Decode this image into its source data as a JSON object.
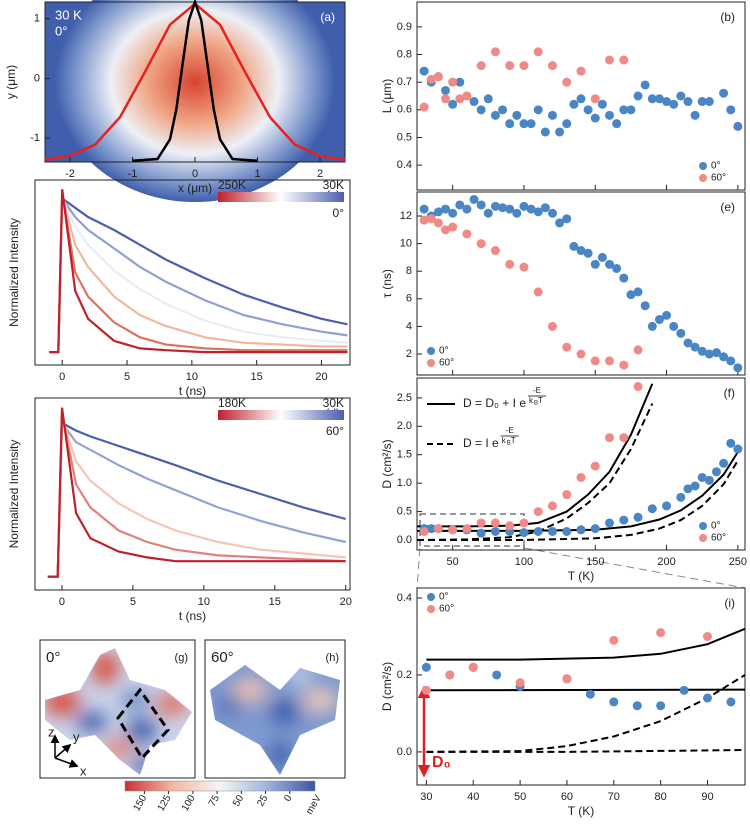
{
  "chart_data": [
    {
      "type": "profile",
      "label": "(a)",
      "text_color": "#ffffff",
      "annotations": [
        "30 K",
        "0°"
      ],
      "xlabel": "x (μm)",
      "ylabel": "y (μm)",
      "xlim": [
        -2.4,
        2.4
      ],
      "ylim": [
        -1.4,
        1.28
      ],
      "xticks": [
        -2,
        -1,
        0,
        1,
        2
      ],
      "yticks": [
        -1,
        0,
        1
      ],
      "series": [
        {
          "color": "#e8201e",
          "x": [
            -2.4,
            -2,
            -1.6,
            -1.2,
            -0.8,
            -0.4,
            0,
            0.4,
            0.8,
            1.2,
            1.6,
            2,
            2.4
          ],
          "values": [
            -1.36,
            -1.3,
            -1.11,
            -0.65,
            0.11,
            0.9,
            1.25,
            0.9,
            0.11,
            -0.65,
            -1.11,
            -1.3,
            -1.36
          ]
        },
        {
          "color": "#000000",
          "x": [
            -1,
            -0.6,
            -0.4,
            -0.3,
            -0.2,
            -0.1,
            0,
            0.1,
            0.2,
            0.3,
            0.4,
            0.6,
            1
          ],
          "values": [
            -1.38,
            -1.35,
            -1.02,
            -0.52,
            0.23,
            0.97,
            1.28,
            0.97,
            0.23,
            -0.52,
            -1.02,
            -1.35,
            -1.38
          ]
        }
      ]
    },
    {
      "type": "scatter",
      "label": "(b)",
      "ylabel": "L (μm)",
      "xlim": [
        25,
        255
      ],
      "ylim": [
        0.31,
        0.99
      ],
      "xticks": [
        50,
        100,
        150,
        200,
        250
      ],
      "xtick_labels": false,
      "yticks": [
        0.4,
        0.5,
        0.6,
        0.7,
        0.8,
        0.9
      ],
      "legend": "lower right",
      "series": [
        {
          "name": "0°",
          "color": "#4a86c4",
          "x": [
            30,
            35,
            40,
            45,
            50,
            55,
            60,
            65,
            70,
            75,
            80,
            85,
            90,
            95,
            100,
            105,
            110,
            115,
            120,
            125,
            130,
            135,
            140,
            145,
            150,
            155,
            160,
            165,
            170,
            175,
            180,
            185,
            190,
            195,
            200,
            205,
            210,
            215,
            220,
            225,
            230,
            240,
            245,
            250
          ],
          "values": [
            0.74,
            0.7,
            0.72,
            0.67,
            0.62,
            0.7,
            0.65,
            0.63,
            0.6,
            0.64,
            0.58,
            0.6,
            0.55,
            0.58,
            0.55,
            0.55,
            0.6,
            0.52,
            0.58,
            0.52,
            0.55,
            0.62,
            0.64,
            0.6,
            0.57,
            0.62,
            0.58,
            0.55,
            0.6,
            0.6,
            0.65,
            0.69,
            0.64,
            0.64,
            0.63,
            0.62,
            0.65,
            0.63,
            0.58,
            0.63,
            0.63,
            0.66,
            0.6,
            0.54
          ]
        },
        {
          "name": "60°",
          "color": "#ef8a87",
          "x": [
            30,
            35,
            40,
            45,
            50,
            55,
            60,
            70,
            80,
            90,
            100,
            110,
            120,
            130,
            140,
            150,
            160,
            170
          ],
          "values": [
            0.61,
            0.71,
            0.72,
            0.64,
            0.7,
            0.64,
            0.65,
            0.76,
            0.81,
            0.76,
            0.76,
            0.81,
            0.76,
            0.7,
            0.74,
            0.64,
            0.78,
            0.78
          ]
        }
      ]
    },
    {
      "type": "decay",
      "label": "(c)",
      "ylabel": "Normalized Intensity",
      "xlabel": "t (ns)",
      "xlim": [
        -2.1,
        22.2
      ],
      "ylim": [
        0.05,
        1.05
      ],
      "xticks": [
        0,
        5,
        10,
        15,
        20
      ],
      "colorbar": {
        "labels": [
          "250K",
          "30K"
        ],
        "colors": [
          "#c0202a",
          "#ffffff",
          "#4a5fae"
        ]
      },
      "annotations": [
        "0°"
      ],
      "x": [
        -1,
        -0.3,
        0,
        1,
        2,
        4,
        6,
        8,
        11,
        14,
        17,
        20,
        22
      ],
      "series": [
        {
          "color": "#4a5fae",
          "values": [
            0.12,
            0.12,
            0.95,
            0.9,
            0.85,
            0.78,
            0.7,
            0.62,
            0.52,
            0.43,
            0.36,
            0.3,
            0.27
          ]
        },
        {
          "color": "#8da0d0",
          "values": [
            0.12,
            0.12,
            0.95,
            0.85,
            0.78,
            0.68,
            0.58,
            0.5,
            0.4,
            0.32,
            0.27,
            0.23,
            0.21
          ]
        },
        {
          "color": "#e8ecf4",
          "values": [
            0.12,
            0.12,
            0.95,
            0.8,
            0.7,
            0.56,
            0.46,
            0.38,
            0.29,
            0.23,
            0.2,
            0.18,
            0.17
          ]
        },
        {
          "color": "#f0b8a0",
          "values": [
            0.12,
            0.12,
            0.96,
            0.7,
            0.58,
            0.42,
            0.32,
            0.26,
            0.2,
            0.17,
            0.16,
            0.15,
            0.15
          ]
        },
        {
          "color": "#e07060",
          "values": [
            0.12,
            0.12,
            0.98,
            0.55,
            0.42,
            0.28,
            0.2,
            0.16,
            0.14,
            0.13,
            0.13,
            0.13,
            0.13
          ]
        },
        {
          "color": "#c0202a",
          "values": [
            0.12,
            0.12,
            1.0,
            0.45,
            0.3,
            0.18,
            0.14,
            0.13,
            0.12,
            0.12,
            0.12,
            0.12,
            0.12
          ]
        }
      ]
    },
    {
      "type": "decay",
      "label": "(d)",
      "ylabel": "Normalized Intensity",
      "xlabel": "t (ns)",
      "xlim": [
        -1.9,
        20.3
      ],
      "ylim": [
        0.05,
        1.05
      ],
      "xticks": [
        0,
        5,
        10,
        15,
        20
      ],
      "colorbar": {
        "labels": [
          "180K",
          "30K"
        ],
        "colors": [
          "#c0202a",
          "#ffffff",
          "#4a5fae"
        ]
      },
      "annotations": [
        "60°"
      ],
      "x": [
        -1,
        -0.3,
        0,
        1,
        2,
        4,
        6,
        8,
        11,
        14,
        17,
        20
      ],
      "series": [
        {
          "color": "#4a5fae",
          "values": [
            0.12,
            0.12,
            0.92,
            0.88,
            0.85,
            0.8,
            0.75,
            0.7,
            0.62,
            0.55,
            0.48,
            0.42
          ]
        },
        {
          "color": "#8fa3d4",
          "values": [
            0.12,
            0.12,
            0.92,
            0.82,
            0.78,
            0.7,
            0.63,
            0.57,
            0.48,
            0.41,
            0.35,
            0.3
          ]
        },
        {
          "color": "#f3c6b4",
          "values": [
            0.12,
            0.12,
            0.95,
            0.72,
            0.62,
            0.5,
            0.42,
            0.36,
            0.3,
            0.26,
            0.24,
            0.22
          ]
        },
        {
          "color": "#e0807a",
          "values": [
            0.12,
            0.12,
            0.97,
            0.6,
            0.48,
            0.36,
            0.3,
            0.26,
            0.23,
            0.22,
            0.21,
            0.2
          ]
        },
        {
          "color": "#c0202a",
          "values": [
            0.12,
            0.12,
            1.0,
            0.45,
            0.32,
            0.25,
            0.22,
            0.2,
            0.2,
            0.2,
            0.2,
            0.2
          ]
        }
      ]
    },
    {
      "type": "scatter",
      "label": "(e)",
      "ylabel": "τ (ns)",
      "xlim": [
        25,
        255
      ],
      "ylim": [
        0.48,
        13.74
      ],
      "xticks": [
        50,
        100,
        150,
        200,
        250
      ],
      "xtick_labels": false,
      "yticks": [
        2,
        4,
        6,
        8,
        10,
        12
      ],
      "legend": "lower left",
      "series": [
        {
          "name": "0°",
          "color": "#4a86c4",
          "x": [
            30,
            35,
            40,
            45,
            50,
            55,
            60,
            65,
            70,
            75,
            80,
            85,
            90,
            95,
            100,
            105,
            110,
            115,
            120,
            125,
            130,
            135,
            140,
            145,
            150,
            155,
            160,
            165,
            170,
            175,
            180,
            185,
            190,
            195,
            200,
            205,
            210,
            215,
            220,
            225,
            230,
            235,
            240,
            245,
            250
          ],
          "values": [
            12.5,
            12,
            12.3,
            12.5,
            12.2,
            12.8,
            12.5,
            13.2,
            12.8,
            12.2,
            12.7,
            12.6,
            12.5,
            12.2,
            12.7,
            12.5,
            12.3,
            12.6,
            12.2,
            11.5,
            11.8,
            9.8,
            9.5,
            9.3,
            8.5,
            9,
            8.5,
            8.2,
            7.5,
            6.3,
            6.5,
            5.5,
            4,
            4.5,
            4.8,
            4,
            3.5,
            2.8,
            2.5,
            2.2,
            2,
            2.1,
            1.8,
            1.5,
            1
          ]
        },
        {
          "name": "60°",
          "color": "#ef8a87",
          "x": [
            30,
            35,
            40,
            45,
            50,
            60,
            70,
            80,
            90,
            100,
            110,
            120,
            130,
            140,
            150,
            160,
            170,
            180
          ],
          "values": [
            11.7,
            11.8,
            11.5,
            11,
            11.2,
            10.7,
            10,
            9.5,
            8.5,
            8.3,
            6.5,
            4,
            2.5,
            2,
            1.5,
            1.5,
            1.2,
            2.3
          ]
        }
      ]
    },
    {
      "type": "scatter",
      "label": "(f)",
      "ylabel": "D (cm²/s)",
      "xlabel": "T (K)",
      "xlim": [
        25,
        255
      ],
      "ylim": [
        -0.176,
        2.85
      ],
      "xticks": [
        50,
        100,
        150,
        200,
        250
      ],
      "yticks": [
        {
          "value": 0,
          "label": "0.0"
        },
        0.5,
        {
          "value": 1,
          "label": "1.0"
        },
        1.5,
        {
          "value": 2,
          "label": "2.0"
        },
        2.5
      ],
      "legend": "lower right",
      "formulas": [
        {
          "style": "solid",
          "lhs": "D = D₀ + I e",
          "exp": [
            "-E",
            "k",
            "B",
            "T"
          ]
        },
        {
          "style": "dashed",
          "lhs": "D = I e",
          "exp": [
            "-E",
            "k",
            "B",
            "T"
          ]
        }
      ],
      "series": [
        {
          "name": "0°",
          "color": "#4a86c4",
          "x": [
            30,
            35,
            40,
            50,
            60,
            70,
            80,
            90,
            100,
            110,
            120,
            130,
            140,
            150,
            160,
            170,
            180,
            190,
            200,
            210,
            215,
            220,
            225,
            230,
            235,
            240,
            245,
            250
          ],
          "values": [
            0.2,
            0.2,
            0.2,
            0.18,
            0.18,
            0.12,
            0.15,
            0.15,
            0.13,
            0.15,
            0.15,
            0.15,
            0.18,
            0.2,
            0.3,
            0.35,
            0.4,
            0.55,
            0.6,
            0.75,
            0.9,
            0.95,
            1.1,
            1.05,
            1.2,
            1.35,
            1.7,
            1.6
          ]
        },
        {
          "name": "60°",
          "color": "#ef8a87",
          "x": [
            30,
            40,
            50,
            60,
            70,
            80,
            90,
            100,
            110,
            120,
            130,
            140,
            150,
            160,
            170,
            180
          ],
          "values": [
            0.15,
            0.2,
            0.18,
            0.2,
            0.3,
            0.3,
            0.25,
            0.3,
            0.5,
            0.6,
            0.8,
            1.1,
            1.3,
            1.8,
            1.8,
            2.7
          ]
        }
      ],
      "fits": [
        {
          "style": "solid",
          "x": [
            25,
            60,
            90,
            110,
            130,
            145,
            160,
            175,
            190
          ],
          "values": [
            0.24,
            0.24,
            0.25,
            0.3,
            0.5,
            0.8,
            1.2,
            1.85,
            2.75
          ]
        },
        {
          "style": "dashed",
          "x": [
            25,
            60,
            90,
            110,
            130,
            145,
            160,
            175,
            190
          ],
          "values": [
            0,
            0.01,
            0.05,
            0.15,
            0.38,
            0.65,
            1.0,
            1.6,
            2.4
          ]
        },
        {
          "style": "solid",
          "x": [
            25,
            100,
            150,
            175,
            195,
            210,
            225,
            240,
            250
          ],
          "values": [
            0.16,
            0.16,
            0.18,
            0.24,
            0.36,
            0.52,
            0.78,
            1.15,
            1.55
          ]
        },
        {
          "style": "dashed",
          "x": [
            25,
            100,
            150,
            175,
            195,
            210,
            225,
            240,
            250
          ],
          "values": [
            0,
            0,
            0.03,
            0.09,
            0.2,
            0.35,
            0.6,
            0.98,
            1.4
          ]
        }
      ]
    },
    {
      "type": "surface",
      "panels": [
        {
          "label": "(g)",
          "angle": "0°"
        },
        {
          "label": "(h)",
          "angle": "60°"
        }
      ],
      "axes_labels": [
        "z",
        "y",
        "x"
      ],
      "colorbar": {
        "clim": [
          170,
          -26
        ],
        "ticks": [
          150,
          125,
          100,
          75,
          50,
          25,
          0
        ],
        "unit": "meV",
        "colors": [
          "#c8303a",
          "#f2b8a0",
          "#f4f4f4",
          "#9fb4dc",
          "#3b55a8"
        ]
      }
    },
    {
      "type": "scatter",
      "label": "(i)",
      "ylabel": "D (cm²/s)",
      "xlabel": "T (K)",
      "xlim": [
        28,
        98
      ],
      "ylim": [
        -0.086,
        0.426
      ],
      "xticks": [
        30,
        40,
        50,
        60,
        70,
        80,
        90
      ],
      "yticks": [
        {
          "value": 0,
          "label": "0.0"
        },
        0.2,
        0.4
      ],
      "legend": "upper left",
      "annotation": "D₀",
      "series": [
        {
          "name": "0°",
          "color": "#4a86c4",
          "x": [
            30,
            35,
            40,
            45,
            50,
            60,
            65,
            70,
            75,
            80,
            85,
            90,
            95
          ],
          "values": [
            0.22,
            0.2,
            0.22,
            0.2,
            0.17,
            0.19,
            0.15,
            0.13,
            0.12,
            0.12,
            0.16,
            0.14,
            0.13
          ]
        },
        {
          "name": "60°",
          "color": "#ef8a87",
          "x": [
            30,
            35,
            40,
            50,
            60,
            70,
            80,
            90
          ],
          "values": [
            0.16,
            0.2,
            0.22,
            0.18,
            0.19,
            0.29,
            0.31,
            0.3
          ]
        }
      ],
      "fits": [
        {
          "style": "solid",
          "x": [
            30,
            50,
            70,
            80,
            90,
            98
          ],
          "values": [
            0.24,
            0.24,
            0.245,
            0.255,
            0.28,
            0.32
          ]
        },
        {
          "style": "solid",
          "x": [
            30,
            98
          ],
          "values": [
            0.16,
            0.162
          ]
        },
        {
          "style": "dashed",
          "x": [
            30,
            60,
            98
          ],
          "values": [
            0,
            0,
            0.005
          ]
        },
        {
          "style": "dashed",
          "x": [
            30,
            50,
            60,
            70,
            80,
            90,
            98
          ],
          "values": [
            0,
            0.002,
            0.015,
            0.04,
            0.08,
            0.14,
            0.2
          ]
        }
      ]
    }
  ]
}
